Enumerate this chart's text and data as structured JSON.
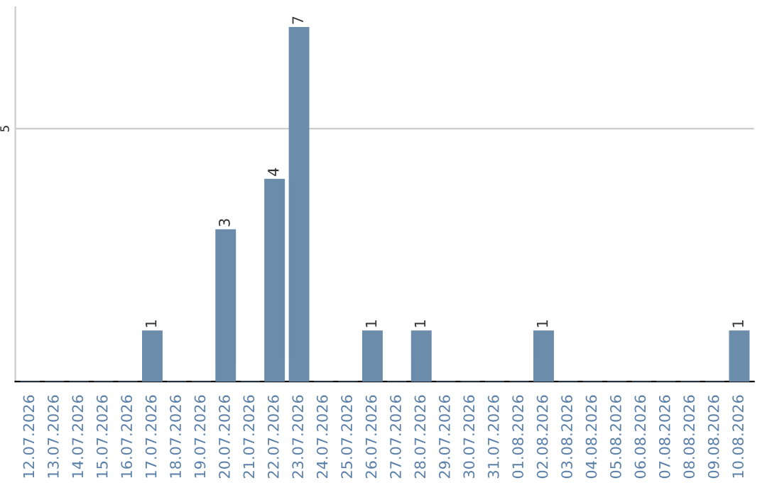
{
  "chart_data": {
    "type": "bar",
    "categories": [
      "12.07.2026",
      "13.07.2026",
      "14.07.2026",
      "15.07.2026",
      "16.07.2026",
      "17.07.2026",
      "18.07.2026",
      "19.07.2026",
      "20.07.2026",
      "21.07.2026",
      "22.07.2026",
      "23.07.2026",
      "24.07.2026",
      "25.07.2026",
      "26.07.2026",
      "27.07.2026",
      "28.07.2026",
      "29.07.2026",
      "30.07.2026",
      "31.07.2026",
      "01.08.2026",
      "02.08.2026",
      "03.08.2026",
      "04.08.2026",
      "05.08.2026",
      "06.08.2026",
      "07.08.2026",
      "08.08.2026",
      "09.08.2026",
      "10.08.2026"
    ],
    "values": [
      0,
      0,
      0,
      0,
      0,
      1,
      0,
      0,
      3,
      0,
      4,
      7,
      0,
      0,
      1,
      0,
      1,
      0,
      0,
      0,
      0,
      1,
      0,
      0,
      0,
      0,
      0,
      0,
      0,
      1
    ],
    "value_labels": [
      null,
      null,
      null,
      null,
      null,
      "1",
      null,
      null,
      "3",
      null,
      "4",
      "7",
      null,
      null,
      "1",
      null,
      "1",
      null,
      null,
      null,
      null,
      "1",
      null,
      null,
      null,
      null,
      null,
      null,
      null,
      "1"
    ],
    "color": "#6b8cab",
    "ylim": [
      0,
      7.4
    ],
    "yticks": [
      5
    ],
    "grid": "y",
    "legend": false
  }
}
